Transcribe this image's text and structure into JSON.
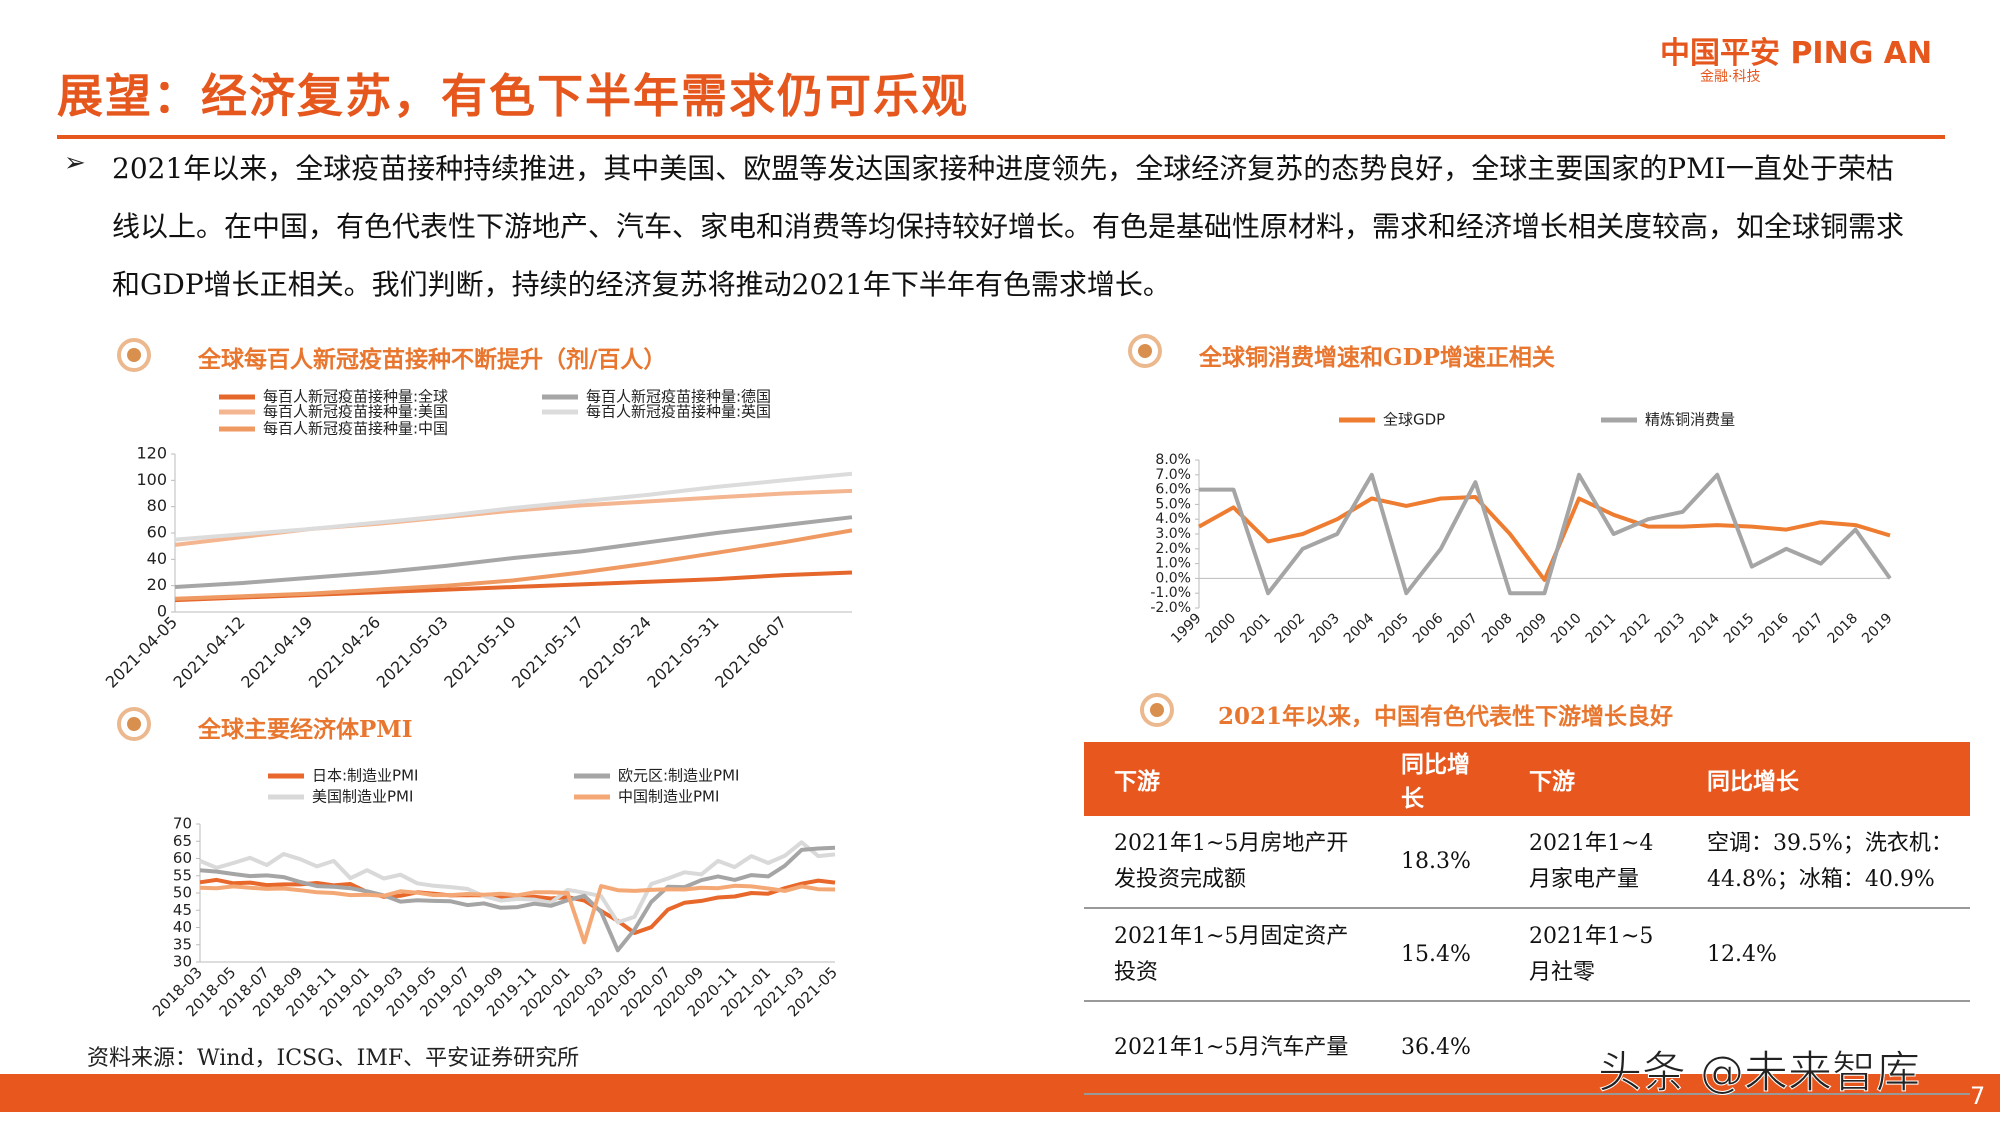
{
  "header": {
    "title": "展望：经济复苏，有色下半年需求仍可乐观",
    "logo": "中国平安 PING AN",
    "logo_sub": "金融·科技"
  },
  "bullet": "2021年以来，全球疫苗接种持续推进，其中美国、欧盟等发达国家接种进度领先，全球经济复苏的态势良好，全球主要国家的PMI一直处于荣枯线以上。在中国，有色代表性下游地产、汽车、家电和消费等均保持较好增长。有色是基础性原材料，需求和经济增长相关度较高，如全球铜需求和GDP增长正相关。我们判断，持续的经济复苏将推动2021年下半年有色需求增长。",
  "chart_data": [
    {
      "type": "line",
      "title": "全球每百人新冠疫苗接种不断提升（剂/百人）",
      "categories": [
        "2021-04-05",
        "2021-04-12",
        "2021-04-19",
        "2021-04-26",
        "2021-05-03",
        "2021-05-10",
        "2021-05-17",
        "2021-05-24",
        "2021-05-31",
        "2021-06-07",
        null
      ],
      "series": [
        {
          "name": "每百人新冠疫苗接种量:全球",
          "color": "#e5672c",
          "values": [
            9,
            11,
            13,
            15,
            17,
            19,
            21,
            23,
            25,
            28,
            30
          ]
        },
        {
          "name": "每百人新冠疫苗接种量:美国",
          "color": "#f4b690",
          "values": [
            51,
            57,
            63,
            67,
            72,
            77,
            81,
            84,
            87,
            90,
            92
          ]
        },
        {
          "name": "每百人新冠疫苗接种量:中国",
          "color": "#ef9a63",
          "values": [
            10,
            12,
            14,
            17,
            20,
            24,
            30,
            37,
            45,
            53,
            62
          ]
        },
        {
          "name": "每百人新冠疫苗接种量:德国",
          "color": "#a6a6a6",
          "values": [
            19,
            22,
            26,
            30,
            35,
            41,
            46,
            53,
            60,
            66,
            72
          ]
        },
        {
          "name": "每百人新冠疫苗接种量:英国",
          "color": "#dcdcdc",
          "values": [
            55,
            59,
            63,
            68,
            73,
            79,
            84,
            89,
            95,
            100,
            105
          ]
        }
      ],
      "ylim": [
        0,
        120
      ],
      "yticks": [
        0,
        20,
        40,
        60,
        80,
        100,
        120
      ]
    },
    {
      "type": "line",
      "title": "全球铜消费增速和GDP增速正相关",
      "categories": [
        "1999",
        "2000",
        "2001",
        "2002",
        "2003",
        "2004",
        "2005",
        "2006",
        "2007",
        "2008",
        "2009",
        "2010",
        "2011",
        "2012",
        "2013",
        "2014",
        "2015",
        "2016",
        "2017",
        "2018",
        "2019"
      ],
      "series": [
        {
          "name": "全球GDP",
          "color": "#ee7d31",
          "values": [
            3.5,
            4.8,
            2.5,
            3.0,
            4.0,
            5.4,
            4.9,
            5.4,
            5.5,
            3.0,
            -0.1,
            5.4,
            4.3,
            3.5,
            3.5,
            3.6,
            3.5,
            3.3,
            3.8,
            3.6,
            2.9
          ]
        },
        {
          "name": "精炼铜消费量",
          "color": "#a5a5a5",
          "values": [
            6.0,
            6.0,
            -1.0,
            2.0,
            3.0,
            7.0,
            -1.0,
            2.0,
            6.5,
            -1.0,
            -1.0,
            7.0,
            3.0,
            4.0,
            4.5,
            7.0,
            0.8,
            2.0,
            1.0,
            3.3,
            0.0
          ]
        }
      ],
      "ylim": [
        -2,
        8
      ],
      "yticks": [
        {
          "value": -2,
          "label": "-2.0%"
        },
        {
          "value": -1,
          "label": "-1.0%"
        },
        {
          "value": 0,
          "label": "0.0%"
        },
        {
          "value": 1,
          "label": "1.0%"
        },
        {
          "value": 2,
          "label": "2.0%"
        },
        {
          "value": 3,
          "label": "3.0%"
        },
        {
          "value": 4,
          "label": "4.0%"
        },
        {
          "value": 5,
          "label": "5.0%"
        },
        {
          "value": 6,
          "label": "6.0%"
        },
        {
          "value": 7,
          "label": "7.0%"
        },
        {
          "value": 8,
          "label": "8.0%"
        }
      ]
    },
    {
      "type": "line",
      "title": "全球主要经济体PMI",
      "categories": [
        "2018-03",
        null,
        "2018-05",
        null,
        "2018-07",
        null,
        "2018-09",
        null,
        "2018-11",
        null,
        "2019-01",
        null,
        "2019-03",
        null,
        "2019-05",
        null,
        "2019-07",
        null,
        "2019-09",
        null,
        "2019-11",
        null,
        "2020-01",
        null,
        "2020-03",
        null,
        "2020-05",
        null,
        "2020-07",
        null,
        "2020-09",
        null,
        "2020-11",
        null,
        "2021-01",
        null,
        "2021-03",
        null,
        "2021-05"
      ],
      "series": [
        {
          "name": "日本:制造业PMI",
          "color": "#e8672a",
          "values": [
            53.1,
            53.8,
            52.8,
            53.0,
            52.3,
            52.5,
            52.5,
            52.9,
            52.2,
            52.6,
            50.3,
            48.9,
            49.2,
            50.2,
            49.8,
            49.3,
            49.4,
            49.3,
            48.9,
            48.4,
            48.9,
            48.4,
            48.8,
            47.8,
            44.8,
            41.9,
            38.4,
            40.1,
            45.2,
            47.2,
            47.7,
            48.7,
            49.0,
            50.0,
            49.8,
            51.4,
            52.7,
            53.6,
            53.0
          ]
        },
        {
          "name": "美国制造业PMI",
          "color": "#d9d9d9",
          "values": [
            59.3,
            57.3,
            58.7,
            60.2,
            58.1,
            61.3,
            59.8,
            57.7,
            59.3,
            54.3,
            56.6,
            54.2,
            55.3,
            52.8,
            52.1,
            51.7,
            51.2,
            49.1,
            47.8,
            48.3,
            48.1,
            47.2,
            50.9,
            50.1,
            49.1,
            41.5,
            43.1,
            52.6,
            54.2,
            56.0,
            55.4,
            59.3,
            57.5,
            60.7,
            58.7,
            60.8,
            64.7,
            60.7,
            61.2
          ]
        },
        {
          "name": "欧元区:制造业PMI",
          "color": "#a5a5a5",
          "values": [
            56.6,
            56.2,
            55.5,
            54.9,
            55.1,
            54.6,
            53.2,
            52.0,
            51.8,
            51.4,
            50.5,
            49.3,
            47.5,
            47.9,
            47.7,
            47.6,
            46.5,
            47.0,
            45.7,
            45.9,
            46.9,
            46.3,
            47.9,
            49.2,
            44.5,
            33.4,
            39.4,
            47.4,
            51.8,
            51.7,
            53.7,
            54.8,
            53.8,
            55.2,
            54.8,
            57.9,
            62.5,
            62.9,
            63.1
          ]
        },
        {
          "name": "中国制造业PMI",
          "color": "#f4a875",
          "values": [
            51.5,
            51.4,
            51.9,
            51.5,
            51.2,
            51.3,
            50.8,
            50.2,
            50.0,
            49.4,
            49.5,
            49.2,
            50.5,
            50.1,
            49.4,
            49.4,
            49.7,
            49.5,
            49.8,
            49.3,
            50.2,
            50.2,
            50.0,
            35.7,
            52.0,
            50.8,
            50.6,
            50.9,
            51.1,
            51.0,
            51.5,
            51.4,
            52.1,
            51.9,
            51.3,
            50.6,
            51.9,
            51.1,
            51.0
          ]
        }
      ],
      "ylim": [
        30,
        70
      ],
      "yticks": [
        30,
        35,
        40,
        45,
        50,
        55,
        60,
        65,
        70
      ]
    }
  ],
  "table": {
    "title": "2021年以来，中国有色代表性下游增长良好",
    "header": [
      "下游",
      "同比增长",
      "下游",
      "同比增长"
    ],
    "rows": [
      [
        "2021年1~5月房地产开发投资完成额",
        "18.3%",
        "2021年1~4月家电产量",
        "空调：39.5%；洗衣机：44.8%；冰箱：40.9%"
      ],
      [
        "2021年1~5月固定资产投资",
        "15.4%",
        "2021年1~5月社零",
        "12.4%"
      ],
      [
        "2021年1~5月汽车产量",
        "36.4%"
      ]
    ]
  },
  "source": "资料来源：Wind，ICSG、IMF、平安证券研究所",
  "watermark": "头条 @未来智库",
  "page_number": "7"
}
